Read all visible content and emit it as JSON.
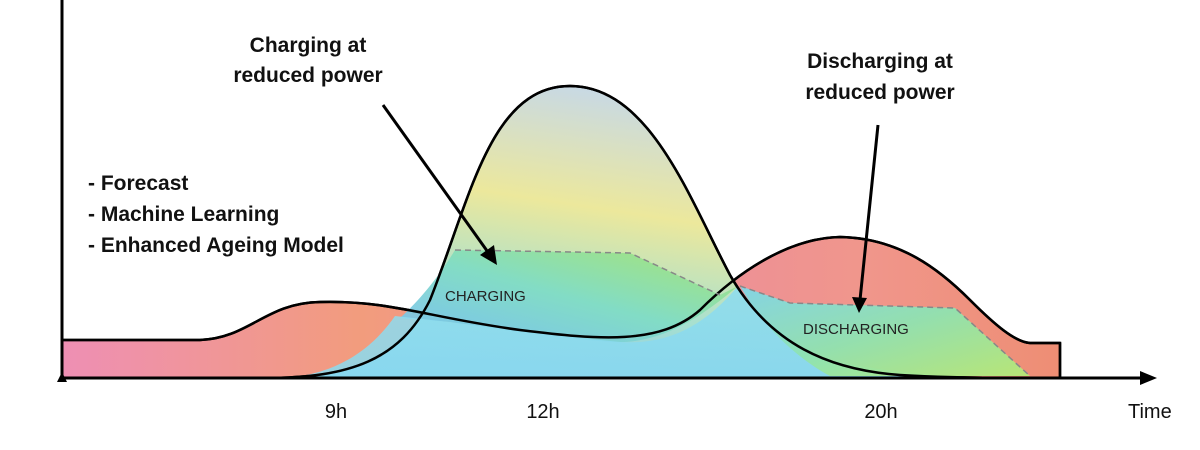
{
  "annotations": {
    "charging_reduced": [
      "Charging at",
      "reduced power"
    ],
    "discharging_reduced": [
      "Discharging at",
      "reduced power"
    ],
    "features": [
      "- Forecast",
      "- Machine Learning",
      "- Enhanced Ageing Model"
    ]
  },
  "regions": {
    "charging": "CHARGING",
    "discharging": "DISCHARGING"
  },
  "axis": {
    "x_ticks": [
      "9h",
      "12h",
      "20h"
    ],
    "x_label": "Time"
  },
  "colors": {
    "consumption_gradient": [
      "#ee8fb4",
      "#f09a78"
    ],
    "solar_gradient": [
      "#7fc7f0",
      "#eae99d",
      "#c7dbe2"
    ],
    "charging_gradient": [
      "#7fd0e6",
      "#9be27d"
    ],
    "discharging_gradient": [
      "#eb8f82",
      "#9de48b"
    ],
    "caption": "#2f4f9e"
  }
}
